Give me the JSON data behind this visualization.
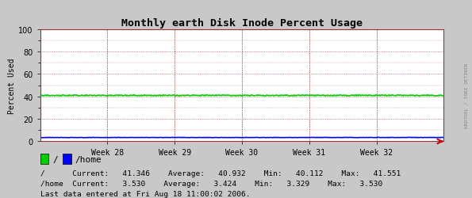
{
  "title": "Monthly earth Disk Inode Percent Usage",
  "ylabel": "Percent Used",
  "ylim": [
    0,
    100
  ],
  "yticks": [
    0,
    20,
    40,
    60,
    80,
    100
  ],
  "xticklabels": [
    "Week 28",
    "Week 29",
    "Week 30",
    "Week 31",
    "Week 32"
  ],
  "line1_color": "#00cc00",
  "line2_color": "#0000ff",
  "line1_value": 40.932,
  "line2_value": 3.424,
  "line1_label": "/",
  "line2_label": "/home",
  "bg_color": "#c8c8c8",
  "plot_bg_color": "#ffffff",
  "grid_color": "#993333",
  "axis_color": "#cc0000",
  "title_color": "#000000",
  "legend_box1_color": "#00cc00",
  "legend_box2_color": "#0000ff",
  "stats": {
    "slash": {
      "current": 41.346,
      "average": 40.932,
      "min": 40.112,
      "max": 41.551
    },
    "home": {
      "current": 3.53,
      "average": 3.424,
      "min": 3.329,
      "max": 3.53
    }
  },
  "footer": "Last data entered at Fri Aug 18 11:00:02 2006.",
  "watermark": "RRDTOOL / TOBI OETIKER",
  "num_points": 600
}
